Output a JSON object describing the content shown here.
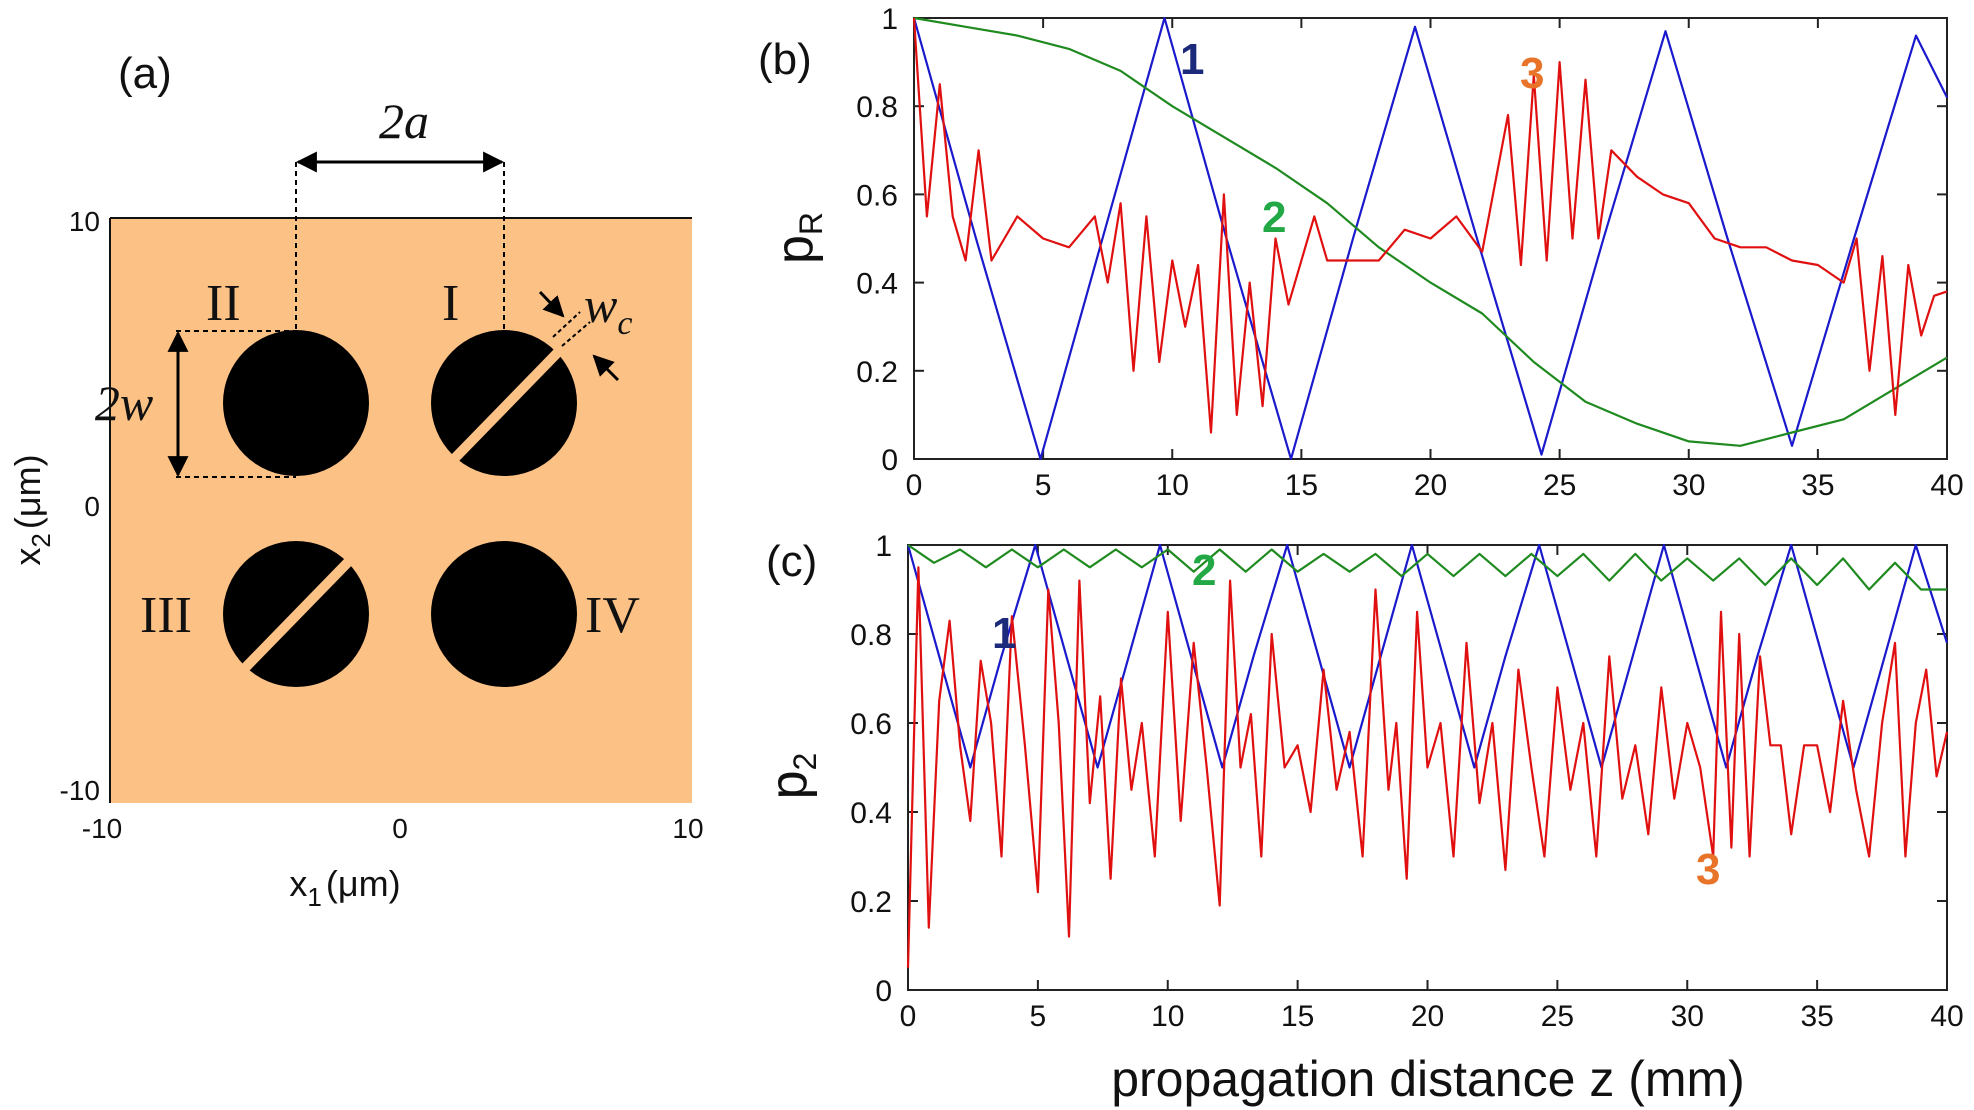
{
  "panels": {
    "a": {
      "label": "(a)",
      "xlabel": "x",
      "xlabel_sub": "1",
      "xlabel_unit": "(μm)",
      "ylabel": "x",
      "ylabel_sub": "2",
      "ylabel_unit": "(μm)",
      "x_ticks": [
        "-10",
        "0",
        "10"
      ],
      "y_ticks": [
        "10",
        "0",
        "-10"
      ],
      "dim_2a": "2a",
      "dim_2w": "2w",
      "dim_wc": "w",
      "dim_wc_sub": "c",
      "cores": [
        "I",
        "II",
        "III",
        "IV"
      ],
      "background_color": "#fcc285",
      "core_color": "#000000"
    },
    "b": {
      "label": "(b)",
      "ylabel": "p",
      "ylabel_sub": "R"
    },
    "c": {
      "label": "(c)",
      "ylabel": "p",
      "ylabel_sub": "2"
    }
  },
  "xlabel": "propagation distance z (mm)",
  "x_ticks": [
    "0",
    "5",
    "10",
    "15",
    "20",
    "25",
    "30",
    "35",
    "40"
  ],
  "y_ticks": [
    "0",
    "0.2",
    "0.4",
    "0.6",
    "0.8",
    "1"
  ],
  "curve_labels_b": [
    "1",
    "2",
    "3"
  ],
  "curve_labels_c": [
    "1",
    "2",
    "3"
  ],
  "colors": {
    "curve1": "#1a1acc",
    "curve2": "#1f8a1f",
    "curve3": "#e01010",
    "label1": "#1b2a7a",
    "label2": "#22a845",
    "label3": "#e8742a"
  },
  "chart_data": [
    {
      "type": "line",
      "panel": "(b)",
      "xlabel": "",
      "ylabel": "pR",
      "xlim": [
        0,
        40
      ],
      "ylim": [
        0,
        1
      ],
      "series": [
        {
          "name": "1",
          "x": [
            0,
            2.4,
            4.9,
            7.3,
            9.7,
            12.1,
            14.6,
            17.0,
            19.4,
            21.8,
            24.3,
            26.7,
            29.1,
            31.5,
            34.0,
            36.4,
            38.8,
            40
          ],
          "y": [
            1.0,
            0.5,
            0.0,
            0.5,
            1.0,
            0.5,
            0.0,
            0.5,
            0.98,
            0.5,
            0.01,
            0.5,
            0.97,
            0.5,
            0.03,
            0.5,
            0.96,
            0.82
          ]
        },
        {
          "name": "2",
          "x": [
            0,
            2,
            4,
            6,
            8,
            10,
            12,
            14,
            16,
            18,
            20,
            22,
            24,
            26,
            28,
            30,
            32,
            34,
            36,
            38,
            40
          ],
          "y": [
            1.0,
            0.98,
            0.96,
            0.93,
            0.88,
            0.8,
            0.73,
            0.66,
            0.58,
            0.48,
            0.4,
            0.33,
            0.22,
            0.13,
            0.08,
            0.04,
            0.03,
            0.06,
            0.09,
            0.16,
            0.23
          ]
        },
        {
          "name": "3",
          "x": [
            0,
            0.5,
            1,
            1.5,
            2,
            2.5,
            3,
            3.5,
            4,
            5,
            6,
            7,
            7.5,
            8,
            8.5,
            9,
            9.5,
            10,
            10.5,
            11,
            11.5,
            12,
            12.5,
            13,
            13.5,
            14,
            14.5,
            15,
            15.5,
            16,
            17,
            18,
            19,
            20,
            21,
            22,
            23,
            23.5,
            24,
            24.5,
            25,
            25.5,
            26,
            26.5,
            27,
            28,
            29,
            30,
            31,
            32,
            33,
            34,
            35,
            36,
            36.5,
            37,
            37.5,
            38,
            38.5,
            39,
            39.5,
            40
          ],
          "y": [
            1.0,
            0.55,
            0.85,
            0.55,
            0.45,
            0.7,
            0.45,
            0.5,
            0.55,
            0.5,
            0.48,
            0.55,
            0.4,
            0.58,
            0.2,
            0.55,
            0.22,
            0.45,
            0.3,
            0.44,
            0.06,
            0.6,
            0.1,
            0.4,
            0.12,
            0.5,
            0.35,
            0.45,
            0.55,
            0.45,
            0.45,
            0.45,
            0.52,
            0.5,
            0.55,
            0.47,
            0.78,
            0.44,
            0.87,
            0.45,
            0.9,
            0.5,
            0.86,
            0.5,
            0.7,
            0.64,
            0.6,
            0.58,
            0.5,
            0.48,
            0.48,
            0.45,
            0.44,
            0.4,
            0.5,
            0.2,
            0.46,
            0.1,
            0.44,
            0.28,
            0.37,
            0.38
          ]
        }
      ]
    },
    {
      "type": "line",
      "panel": "(c)",
      "xlabel": "propagation distance z (mm)",
      "ylabel": "p2",
      "xlim": [
        0,
        40
      ],
      "ylim": [
        0,
        1
      ],
      "series": [
        {
          "name": "1",
          "x": [
            0,
            1.2,
            2.4,
            3.6,
            4.9,
            6.1,
            7.3,
            8.5,
            9.7,
            10.9,
            12.1,
            13.3,
            14.6,
            15.8,
            17.0,
            18.2,
            19.4,
            20.6,
            21.8,
            23.0,
            24.3,
            25.5,
            26.7,
            27.9,
            29.1,
            30.3,
            31.5,
            32.7,
            34.0,
            35.2,
            36.4,
            37.6,
            38.8,
            40
          ],
          "y": [
            1.0,
            0.75,
            0.5,
            0.75,
            1.0,
            0.75,
            0.5,
            0.75,
            1.0,
            0.75,
            0.5,
            0.75,
            1.0,
            0.75,
            0.5,
            0.75,
            1.0,
            0.75,
            0.5,
            0.75,
            1.0,
            0.75,
            0.5,
            0.75,
            1.0,
            0.75,
            0.5,
            0.75,
            1.0,
            0.75,
            0.5,
            0.75,
            1.0,
            0.78
          ]
        },
        {
          "name": "2",
          "x": [
            0,
            1,
            2,
            3,
            4,
            5,
            6,
            7,
            8,
            9,
            10,
            11,
            12,
            13,
            14,
            15,
            16,
            17,
            18,
            19,
            20,
            21,
            22,
            23,
            24,
            25,
            26,
            27,
            28,
            29,
            30,
            31,
            32,
            33,
            34,
            35,
            36,
            37,
            38,
            39,
            40
          ],
          "y": [
            1.0,
            0.96,
            0.99,
            0.95,
            0.99,
            0.95,
            0.99,
            0.95,
            0.99,
            0.95,
            0.99,
            0.94,
            0.99,
            0.94,
            0.99,
            0.94,
            0.98,
            0.94,
            0.98,
            0.93,
            0.98,
            0.93,
            0.98,
            0.93,
            0.98,
            0.93,
            0.98,
            0.92,
            0.98,
            0.92,
            0.97,
            0.92,
            0.97,
            0.91,
            0.97,
            0.91,
            0.97,
            0.9,
            0.96,
            0.9,
            0.9
          ]
        },
        {
          "name": "3",
          "x": [
            0,
            0.4,
            0.8,
            1.2,
            1.6,
            2.0,
            2.4,
            2.8,
            3.2,
            3.6,
            4.0,
            4.5,
            5.0,
            5.4,
            5.8,
            6.2,
            6.6,
            7.0,
            7.4,
            7.8,
            8.2,
            8.6,
            9.0,
            9.5,
            10.0,
            10.5,
            11.0,
            11.5,
            12.0,
            12.4,
            12.8,
            13.2,
            13.6,
            14.0,
            14.5,
            15.0,
            15.5,
            16.0,
            16.5,
            17.0,
            17.5,
            18.0,
            18.5,
            18.8,
            19.2,
            19.6,
            20.0,
            20.5,
            21.0,
            21.5,
            22.0,
            22.5,
            23.0,
            23.5,
            24.0,
            24.5,
            25.0,
            25.5,
            26.0,
            26.5,
            27.0,
            27.5,
            28.0,
            28.5,
            29.0,
            29.5,
            30.0,
            30.5,
            31.0,
            31.3,
            31.7,
            32.0,
            32.4,
            32.8,
            33.2,
            33.6,
            34.0,
            34.5,
            35.0,
            35.5,
            36.0,
            36.5,
            37.0,
            37.5,
            38.0,
            38.4,
            38.8,
            39.2,
            39.6,
            40
          ],
          "y": [
            0.05,
            0.95,
            0.14,
            0.65,
            0.83,
            0.55,
            0.38,
            0.74,
            0.6,
            0.3,
            0.84,
            0.55,
            0.22,
            0.9,
            0.6,
            0.12,
            0.92,
            0.42,
            0.66,
            0.25,
            0.7,
            0.45,
            0.6,
            0.3,
            0.85,
            0.38,
            0.78,
            0.5,
            0.19,
            0.92,
            0.5,
            0.62,
            0.3,
            0.8,
            0.5,
            0.55,
            0.4,
            0.72,
            0.45,
            0.58,
            0.3,
            0.9,
            0.45,
            0.6,
            0.25,
            0.85,
            0.5,
            0.6,
            0.3,
            0.78,
            0.42,
            0.6,
            0.27,
            0.72,
            0.5,
            0.3,
            0.68,
            0.45,
            0.6,
            0.3,
            0.75,
            0.43,
            0.55,
            0.35,
            0.68,
            0.43,
            0.6,
            0.5,
            0.3,
            0.85,
            0.32,
            0.8,
            0.3,
            0.75,
            0.55,
            0.55,
            0.35,
            0.55,
            0.55,
            0.4,
            0.65,
            0.45,
            0.3,
            0.6,
            0.78,
            0.3,
            0.6,
            0.72,
            0.48,
            0.58
          ]
        }
      ]
    }
  ]
}
